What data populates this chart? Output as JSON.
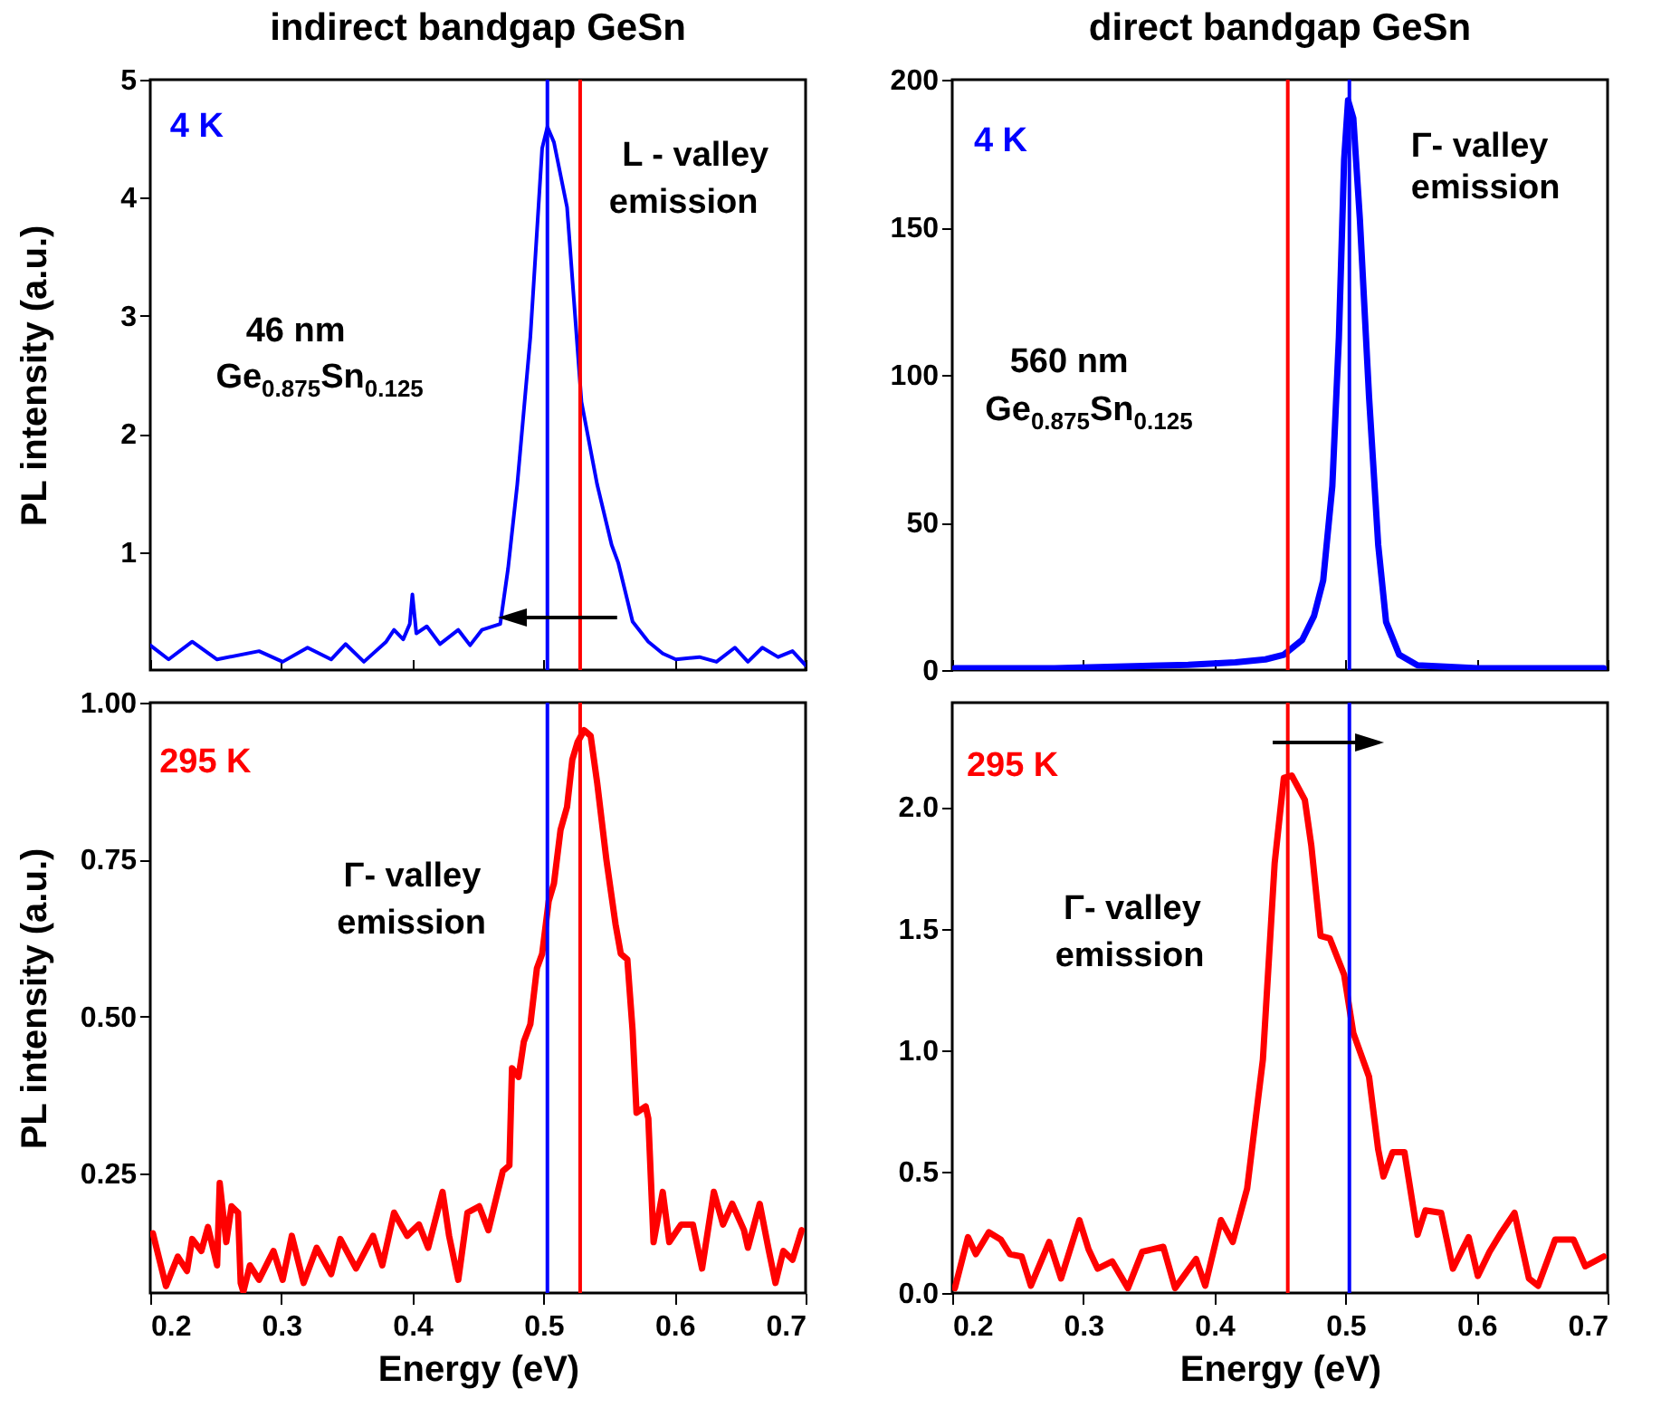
{
  "chart_data": [
    {
      "type": "line",
      "title": "indirect bandgap GeSn",
      "ylabel": "PL intensity (a.u.)",
      "xlim": [
        0.2,
        0.7
      ],
      "xticks": [
        0.2,
        0.3,
        0.4,
        0.5,
        0.6,
        0.7
      ],
      "ylim": [
        0,
        5
      ],
      "yticks": [
        1,
        2,
        3,
        4,
        5
      ],
      "tick_labels": "y",
      "x": [
        0.2,
        0.214,
        0.232,
        0.251,
        0.283,
        0.301,
        0.32,
        0.338,
        0.349,
        0.363,
        0.38,
        0.386,
        0.393,
        0.398,
        0.4,
        0.403,
        0.411,
        0.421,
        0.435,
        0.444,
        0.453,
        0.467,
        0.473,
        0.48,
        0.49,
        0.499,
        0.503,
        0.508,
        0.518,
        0.529,
        0.541,
        0.552,
        0.557,
        0.568,
        0.58,
        0.591,
        0.601,
        0.619,
        0.632,
        0.646,
        0.656,
        0.667,
        0.679,
        0.69,
        0.7
      ],
      "series": [
        {
          "color": "#0000ff",
          "values": [
            0.21,
            0.09,
            0.24,
            0.09,
            0.16,
            0.07,
            0.19,
            0.09,
            0.22,
            0.07,
            0.24,
            0.34,
            0.26,
            0.39,
            0.64,
            0.31,
            0.37,
            0.22,
            0.34,
            0.21,
            0.34,
            0.39,
            0.86,
            1.57,
            2.82,
            4.42,
            4.6,
            4.47,
            3.92,
            2.27,
            1.57,
            1.06,
            0.91,
            0.41,
            0.24,
            0.14,
            0.09,
            0.11,
            0.07,
            0.19,
            0.07,
            0.19,
            0.11,
            0.16,
            0.04
          ]
        }
      ],
      "ref_lines": [
        {
          "axis": "x",
          "value": 0.503,
          "color": "#0000ff"
        },
        {
          "axis": "x",
          "value": 0.528,
          "color": "#ff0000"
        }
      ],
      "annotations": [
        "4 K",
        "L - valley",
        "emission",
        "46 nm",
        "Ge$_{0.875}$Sn$_{0.125}$"
      ]
    },
    {
      "type": "line",
      "title": "direct bandgap GeSn",
      "xlim": [
        0.2,
        0.7
      ],
      "xticks": [
        0.2,
        0.3,
        0.4,
        0.5,
        0.6,
        0.7
      ],
      "ylim": [
        0,
        200
      ],
      "yticks": [
        0,
        50,
        100,
        150,
        200
      ],
      "tick_labels": "y",
      "x": [
        0.202,
        0.278,
        0.38,
        0.416,
        0.439,
        0.453,
        0.467,
        0.476,
        0.483,
        0.49,
        0.495,
        0.499,
        0.502,
        0.506,
        0.511,
        0.518,
        0.525,
        0.531,
        0.541,
        0.555,
        0.601,
        0.697
      ],
      "series": [
        {
          "color": "#0000ff",
          "values": [
            0.6,
            0.6,
            1.8,
            2.6,
            3.6,
            5.2,
            10.2,
            18.3,
            30.3,
            62.4,
            112.7,
            172.9,
            193.0,
            187.0,
            152.8,
            92.6,
            42.4,
            16.3,
            5.2,
            1.6,
            0.6,
            0.6
          ]
        }
      ],
      "ref_lines": [
        {
          "axis": "x",
          "value": 0.456,
          "color": "#ff0000"
        },
        {
          "axis": "x",
          "value": 0.503,
          "color": "#0000ff"
        }
      ],
      "annotations": [
        "4 K",
        "Γ- valley",
        "emission",
        "560 nm",
        "Ge$_{0.875}$Sn$_{0.125}$"
      ]
    },
    {
      "type": "line",
      "xlabel": "Energy (eV)",
      "ylabel": "PL intensity (a.u.)",
      "xlim": [
        0.2,
        0.7
      ],
      "xticks": [
        0.2,
        0.3,
        0.4,
        0.5,
        0.6,
        0.7
      ],
      "ylim": [
        0.06,
        1.0
      ],
      "yticks": [
        {
          "value": 0.25,
          "label": "0.25"
        },
        {
          "value": 0.5,
          "label": "0.50"
        },
        {
          "value": 0.75,
          "label": "0.75"
        },
        {
          "value": 1.0,
          "label": "1.00"
        }
      ],
      "x": [
        0.202,
        0.212,
        0.221,
        0.228,
        0.232,
        0.239,
        0.244,
        0.251,
        0.253,
        0.258,
        0.262,
        0.267,
        0.269,
        0.271,
        0.276,
        0.283,
        0.294,
        0.301,
        0.308,
        0.317,
        0.327,
        0.338,
        0.345,
        0.357,
        0.37,
        0.377,
        0.386,
        0.396,
        0.405,
        0.412,
        0.423,
        0.428,
        0.435,
        0.442,
        0.451,
        0.458,
        0.469,
        0.474,
        0.476,
        0.481,
        0.485,
        0.49,
        0.495,
        0.499,
        0.504,
        0.508,
        0.513,
        0.518,
        0.522,
        0.526,
        0.531,
        0.536,
        0.541,
        0.548,
        0.555,
        0.559,
        0.564,
        0.568,
        0.571,
        0.578,
        0.58,
        0.584,
        0.591,
        0.596,
        0.605,
        0.614,
        0.621,
        0.63,
        0.637,
        0.644,
        0.653,
        0.656,
        0.665,
        0.672,
        0.677,
        0.683,
        0.69,
        0.697
      ],
      "series": [
        {
          "color": "#ff0000",
          "values": [
            0.155,
            0.071,
            0.118,
            0.095,
            0.146,
            0.127,
            0.165,
            0.104,
            0.235,
            0.141,
            0.198,
            0.188,
            0.076,
            0.062,
            0.104,
            0.081,
            0.127,
            0.081,
            0.151,
            0.076,
            0.132,
            0.09,
            0.146,
            0.099,
            0.151,
            0.104,
            0.188,
            0.151,
            0.169,
            0.132,
            0.221,
            0.151,
            0.081,
            0.188,
            0.198,
            0.16,
            0.254,
            0.263,
            0.418,
            0.404,
            0.46,
            0.488,
            0.577,
            0.6,
            0.684,
            0.712,
            0.797,
            0.834,
            0.909,
            0.937,
            0.956,
            0.947,
            0.872,
            0.75,
            0.647,
            0.6,
            0.591,
            0.478,
            0.347,
            0.357,
            0.338,
            0.141,
            0.221,
            0.141,
            0.169,
            0.169,
            0.099,
            0.221,
            0.169,
            0.202,
            0.16,
            0.132,
            0.202,
            0.127,
            0.076,
            0.127,
            0.113,
            0.16
          ]
        }
      ],
      "ref_lines": [
        {
          "axis": "x",
          "value": 0.503,
          "color": "#0000ff"
        },
        {
          "axis": "x",
          "value": 0.528,
          "color": "#ff0000"
        }
      ],
      "annotations": [
        "295 K",
        "Γ- valley",
        "emission"
      ]
    },
    {
      "type": "line",
      "xlabel": "Energy (eV)",
      "xlim": [
        0.2,
        0.7
      ],
      "xticks": [
        0.2,
        0.3,
        0.4,
        0.5,
        0.6,
        0.7
      ],
      "ylim": [
        0,
        2.43
      ],
      "yticks": [
        {
          "value": 0,
          "label": "0.0"
        },
        {
          "value": 0.5,
          "label": "0.5"
        },
        {
          "value": 1,
          "label": "1.0"
        },
        {
          "value": 1.5,
          "label": "1.5"
        },
        {
          "value": 2,
          "label": "2.0"
        }
      ],
      "x": [
        0.202,
        0.212,
        0.218,
        0.228,
        0.237,
        0.244,
        0.253,
        0.26,
        0.274,
        0.283,
        0.297,
        0.304,
        0.311,
        0.322,
        0.334,
        0.345,
        0.361,
        0.37,
        0.386,
        0.393,
        0.405,
        0.414,
        0.425,
        0.437,
        0.446,
        0.453,
        0.459,
        0.469,
        0.474,
        0.481,
        0.488,
        0.499,
        0.506,
        0.518,
        0.525,
        0.529,
        0.536,
        0.545,
        0.555,
        0.561,
        0.573,
        0.582,
        0.594,
        0.601,
        0.61,
        0.619,
        0.629,
        0.64,
        0.647,
        0.66,
        0.674,
        0.683,
        0.697
      ],
      "series": [
        {
          "color": "#ff0000",
          "values": [
            0.02,
            0.23,
            0.16,
            0.25,
            0.22,
            0.16,
            0.15,
            0.03,
            0.21,
            0.06,
            0.3,
            0.18,
            0.1,
            0.13,
            0.02,
            0.17,
            0.19,
            0.02,
            0.14,
            0.03,
            0.3,
            0.21,
            0.43,
            0.96,
            1.77,
            2.12,
            2.13,
            2.03,
            1.84,
            1.47,
            1.46,
            1.31,
            1.07,
            0.89,
            0.59,
            0.48,
            0.58,
            0.58,
            0.24,
            0.34,
            0.33,
            0.1,
            0.23,
            0.07,
            0.17,
            0.25,
            0.33,
            0.06,
            0.03,
            0.22,
            0.22,
            0.11,
            0.15
          ]
        }
      ],
      "ref_lines": [
        {
          "axis": "x",
          "value": 0.456,
          "color": "#ff0000"
        },
        {
          "axis": "x",
          "value": 0.503,
          "color": "#0000ff"
        }
      ],
      "annotations": [
        "295 K",
        "Γ- valley",
        "emission"
      ]
    }
  ]
}
